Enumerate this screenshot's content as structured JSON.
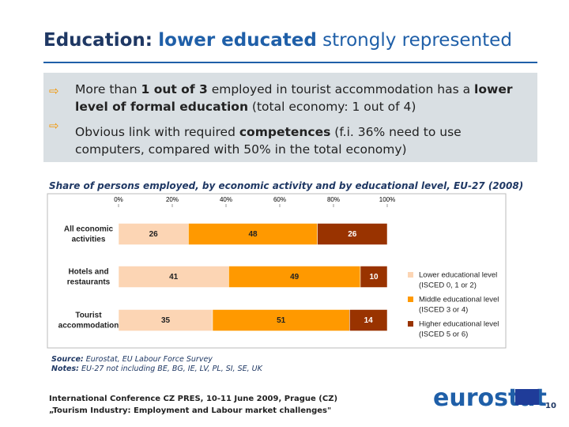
{
  "header": {
    "title": [
      {
        "text": "Education:",
        "color": "#1f3864",
        "bold": true
      },
      {
        "text": "lower educated",
        "color": "#1f5fa8",
        "bold": true
      },
      {
        "text": "strongly represented",
        "color": "#1f5fa8",
        "bold": false
      }
    ]
  },
  "bullets": [
    [
      {
        "text": "More than ",
        "bold": false
      },
      {
        "text": "1 out of 3",
        "bold": true
      },
      {
        "text": " employed in tourist accommodation has a ",
        "bold": false
      },
      {
        "text": "lower level of formal education",
        "bold": true
      },
      {
        "text": " (total economy: 1 out of 4)",
        "bold": false
      }
    ],
    [
      {
        "text": "Obvious link with required ",
        "bold": false
      },
      {
        "text": "competences",
        "bold": true
      },
      {
        "text": " (f.i. 36% need to use computers, compared with 50% in the total economy)",
        "bold": false
      }
    ]
  ],
  "chart_data": {
    "type": "bar",
    "orientation": "horizontal",
    "stacked": true,
    "title": "Share of persons employed, by economic activity and by educational level, EU-27 (2008)",
    "categories": [
      "All economic\nactivities",
      "Hotels and\nrestaurants",
      "Tourist\naccommodation"
    ],
    "series": [
      {
        "name": "Lower educational level\n(ISCED 0, 1 or 2)",
        "color": "#fcd5b4",
        "values": [
          26,
          41,
          35
        ]
      },
      {
        "name": "Middle educational level\n(ISCED 3 or 4)",
        "color": "#ff9900",
        "values": [
          48,
          49,
          51
        ]
      },
      {
        "name": "Higher educational level\n(ISCED 5 or 6)",
        "color": "#993300",
        "values": [
          26,
          10,
          14
        ]
      }
    ],
    "xlim": [
      0,
      100
    ],
    "xticks": [
      {
        "value": 0,
        "label": "0%"
      },
      {
        "value": 20,
        "label": "20%"
      },
      {
        "value": 40,
        "label": "40%"
      },
      {
        "value": 60,
        "label": "60%"
      },
      {
        "value": 80,
        "label": "80%"
      },
      {
        "value": 100,
        "label": "100%"
      }
    ],
    "legend": "right"
  },
  "notes": {
    "source_label": "Source:",
    "source": " Eurostat, EU Labour Force Survey",
    "notes_label": "Notes:",
    "notes": " EU-27 not including BE, BG, IE, LV, PL, SI, SE, UK"
  },
  "footer": {
    "line1": "International Conference CZ PRES, 10-11 June 2009, Prague (CZ)",
    "line2": "„Tourism Industry: Employment and Labour market challenges\"",
    "logo": "eurostat",
    "page": "10"
  }
}
